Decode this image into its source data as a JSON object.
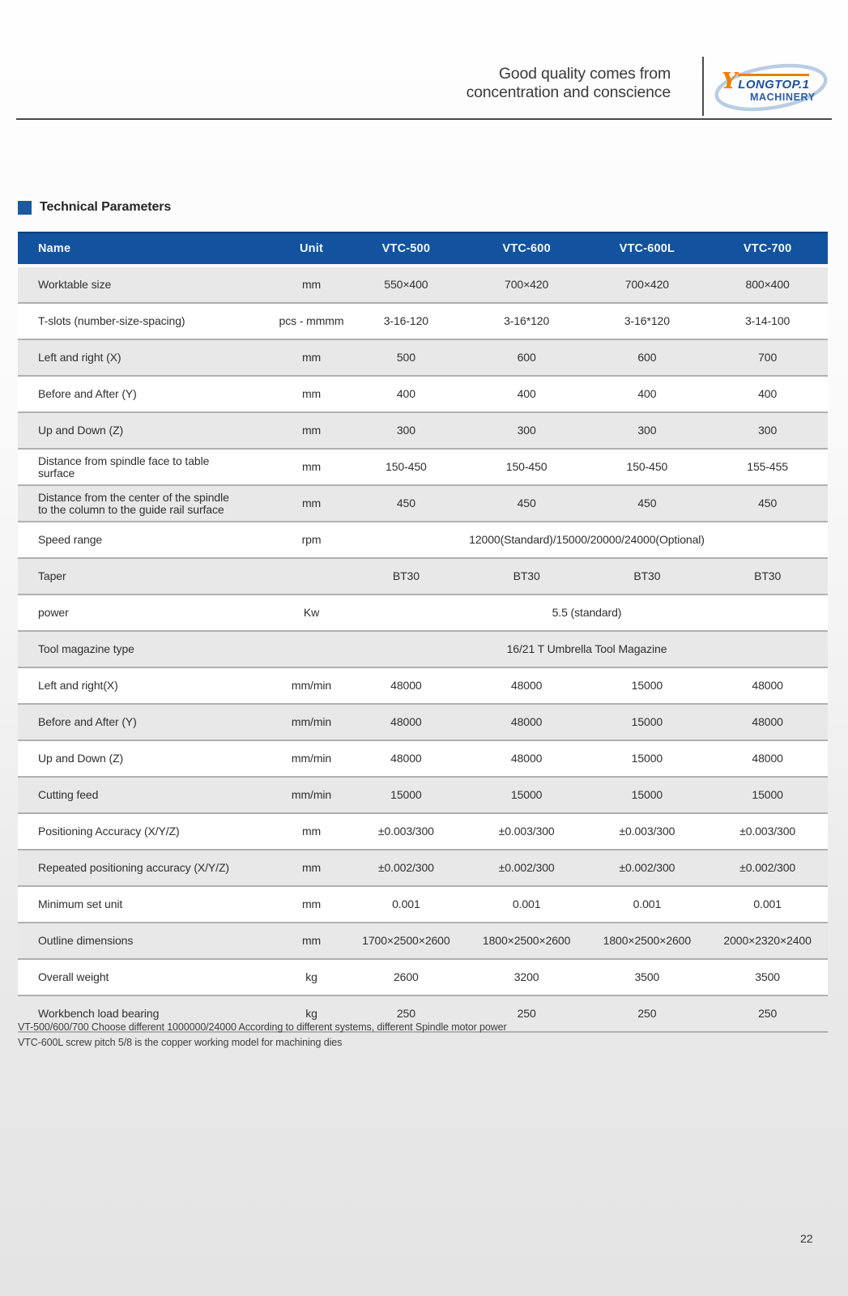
{
  "header": {
    "slogan_line1": "Good quality comes from",
    "slogan_line2": "concentration and conscience",
    "logo": {
      "mark": "Y",
      "name": "LONGTOP.1",
      "subtitle": "MACHINERY"
    }
  },
  "section": {
    "title": "Technical Parameters"
  },
  "table": {
    "columns": [
      "Name",
      "Unit",
      "VTC-500",
      "VTC-600",
      "VTC-600L",
      "VTC-700"
    ],
    "rows": [
      {
        "name": "Worktable size",
        "unit": "mm",
        "values": [
          "550×400",
          "700×420",
          "700×420",
          "800×400"
        ]
      },
      {
        "name": "T-slots (number-size-spacing)",
        "unit": "pcs - mmmm",
        "values": [
          "3-16-120",
          "3-16*120",
          "3-16*120",
          "3-14-100"
        ]
      },
      {
        "name": "Left and right (X)",
        "unit": "mm",
        "values": [
          "500",
          "600",
          "600",
          "700"
        ]
      },
      {
        "name": "Before and After (Y)",
        "unit": "mm",
        "values": [
          "400",
          "400",
          "400",
          "400"
        ]
      },
      {
        "name": "Up and Down (Z)",
        "unit": "mm",
        "values": [
          "300",
          "300",
          "300",
          "300"
        ]
      },
      {
        "name": "Distance from spindle face to table surface",
        "unit": "mm",
        "values": [
          "150-450",
          "150-450",
          "150-450",
          "155-455"
        ]
      },
      {
        "name": "Distance from the center of the spindle to the column to the guide rail surface",
        "unit": "mm",
        "values": [
          "450",
          "450",
          "450",
          "450"
        ]
      },
      {
        "name": "Speed range",
        "unit": "rpm",
        "span": "12000(Standard)/15000/20000/24000(Optional)"
      },
      {
        "name": "Taper",
        "unit": "",
        "values": [
          "BT30",
          "BT30",
          "BT30",
          "BT30"
        ]
      },
      {
        "name": "power",
        "unit": "Kw",
        "span": "5.5 (standard)"
      },
      {
        "name": "Tool magazine type",
        "unit": "",
        "span": "16/21 T Umbrella Tool Magazine"
      },
      {
        "name": "Left and right(X)",
        "unit": "mm/min",
        "values": [
          "48000",
          "48000",
          "15000",
          "48000"
        ]
      },
      {
        "name": "Before and After (Y)",
        "unit": "mm/min",
        "values": [
          "48000",
          "48000",
          "15000",
          "48000"
        ]
      },
      {
        "name": "Up and Down (Z)",
        "unit": "mm/min",
        "values": [
          "48000",
          "48000",
          "15000",
          "48000"
        ]
      },
      {
        "name": "Cutting feed",
        "unit": "mm/min",
        "values": [
          "15000",
          "15000",
          "15000",
          "15000"
        ]
      },
      {
        "name": "Positioning Accuracy (X/Y/Z)",
        "unit": "mm",
        "values": [
          "±0.003/300",
          "±0.003/300",
          "±0.003/300",
          "±0.003/300"
        ]
      },
      {
        "name": "Repeated positioning accuracy (X/Y/Z)",
        "unit": "mm",
        "values": [
          "±0.002/300",
          "±0.002/300",
          "±0.002/300",
          "±0.002/300"
        ]
      },
      {
        "name": "Minimum set unit",
        "unit": "mm",
        "values": [
          "0.001",
          "0.001",
          "0.001",
          "0.001"
        ]
      },
      {
        "name": "Outline dimensions",
        "unit": "mm",
        "values": [
          "1700×2500×2600",
          "1800×2500×2600",
          "1800×2500×2600",
          "2000×2320×2400"
        ]
      },
      {
        "name": "Overall weight",
        "unit": "kg",
        "values": [
          "2600",
          "3200",
          "3500",
          "3500"
        ]
      },
      {
        "name": "Workbench load bearing",
        "unit": "kg",
        "values": [
          "250",
          "250",
          "250",
          "250"
        ]
      }
    ]
  },
  "footnotes": [
    "VT-500/600/700 Choose different 1000000/24000 According to different systems, different Spindle motor power",
    "VTC-600L screw pitch 5/8 is the copper working model for machining dies"
  ],
  "page_number": "22",
  "colors": {
    "table_header_bg": "#12529e",
    "row_alt_bg": "#e8e8e8",
    "accent_square_blue": "#1b5a9e",
    "logo_orange": "#ee7f00",
    "logo_blue": "#1d4f9b",
    "logo_swoosh_blue": "#b9cde4"
  }
}
